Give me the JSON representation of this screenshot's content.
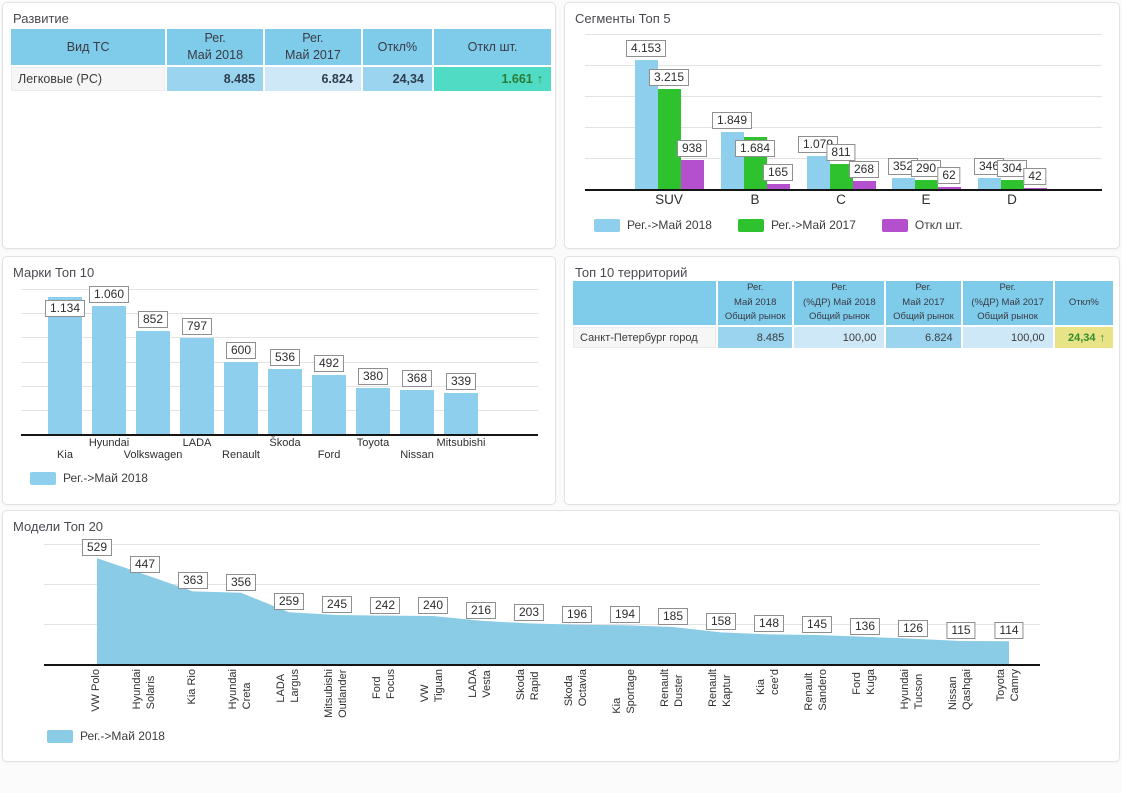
{
  "panels": {
    "razvitie": {
      "title": "Развитие",
      "table": {
        "headers": [
          "Вид ТС",
          "Рег.\nМай 2018",
          "Рег.\nМай 2017",
          "Откл%",
          "Откл шт."
        ],
        "row": {
          "name": "Легковые (PC)",
          "reg_may_2018": "8.485",
          "reg_may_2017": "6.824",
          "otkl_pct": "24,34",
          "otkl_sht": "1.661",
          "trend": "up"
        }
      }
    },
    "segments": {
      "title": "Сегменты Топ 5"
    },
    "brands": {
      "title": "Марки Топ 10"
    },
    "territories": {
      "title": "Топ 10 территорий",
      "table": {
        "headers": [
          "",
          "Рег.\nМай 2018\nОбщий рынок",
          "Рег.\n(%ДР) Май 2018\nОбщий рынок",
          "Рег.\nМай 2017\nОбщий рынок",
          "Рег.\n(%ДР) Май 2017\nОбщий рынок",
          "Откл%"
        ],
        "row": {
          "name": "Санкт-Петербург город",
          "reg_may_2018": "8.485",
          "pct_may_2018": "100,00",
          "reg_may_2017": "6.824",
          "pct_may_2017": "100,00",
          "otkl_pct": "24,34",
          "trend": "up"
        }
      }
    },
    "models": {
      "title": "Модели Топ 20"
    }
  },
  "icons": {
    "trend_up": "↑"
  },
  "colors": {
    "table_header": "#7ecbea",
    "cell_blue": "#9bd4ef",
    "cell_light_blue": "#cfe8f7",
    "cell_teal": "#50dcc4",
    "cell_khaki": "#e9e388",
    "positive_green": "#2e8b2e",
    "series_blue": "#8dcfec",
    "series_green": "#2ec32e",
    "series_purple": "#b450ce"
  },
  "chart_data": [
    {
      "id": "segments",
      "type": "bar",
      "title": "Сегменты Топ 5",
      "categories": [
        "SUV",
        "B",
        "C",
        "E",
        "D"
      ],
      "series": [
        {
          "name": "Рег.->Май 2018",
          "color": "#8dcfec",
          "values": [
            4153,
            1849,
            1079,
            352,
            346
          ]
        },
        {
          "name": "Рег.->Май 2017",
          "color": "#2ec32e",
          "values": [
            3215,
            1684,
            811,
            290,
            304
          ]
        },
        {
          "name": "Откл шт.",
          "color": "#b450ce",
          "values": [
            938,
            165,
            268,
            62,
            42
          ]
        }
      ],
      "xlabel": "",
      "ylabel": "",
      "ylim": [
        0,
        5000
      ],
      "grid_step": 1000,
      "grid": true,
      "value_labels": true,
      "legend_position": "bottom-left"
    },
    {
      "id": "brands",
      "type": "bar",
      "title": "Марки Топ 10",
      "categories": [
        "Kia",
        "Hyundai",
        "Volkswagen",
        "LADA",
        "Renault",
        "Škoda",
        "Ford",
        "Toyota",
        "Nissan",
        "Mitsubishi"
      ],
      "series": [
        {
          "name": "Рег.->Май 2018",
          "color": "#8dcfec",
          "values": [
            1134,
            1060,
            852,
            797,
            600,
            536,
            492,
            380,
            368,
            339
          ]
        }
      ],
      "xlabel": "",
      "ylabel": "",
      "ylim": [
        0,
        1200
      ],
      "grid_step": 200,
      "grid": true,
      "value_labels": true,
      "legend_position": "bottom-left"
    },
    {
      "id": "models",
      "type": "area",
      "title": "Модели Топ 20",
      "categories": [
        "VW Polo",
        "Hyundai\nSolaris",
        "Kia Rio",
        "Hyundai\nCreta",
        "LADA\nLargus",
        "Mitsubishi\nOutlander",
        "Ford\nFocus",
        "VW\nTiguan",
        "LADA\nVesta",
        "Skoda\nRapid",
        "Skoda\nOctavia",
        "Kia\nSportage",
        "Renault\nDuster",
        "Renault\nKaptur",
        "Kia\ncee'd",
        "Renault\nSandero",
        "Ford\nKuga",
        "Hyundai\nTucson",
        "Nissan\nQashqai",
        "Toyota\nCamry"
      ],
      "series": [
        {
          "name": "Рег.->Май 2018",
          "color": "#8acbe6",
          "values": [
            529,
            447,
            363,
            356,
            259,
            245,
            242,
            240,
            216,
            203,
            196,
            194,
            185,
            158,
            148,
            145,
            136,
            126,
            115,
            114
          ]
        }
      ],
      "xlabel": "",
      "ylabel": "",
      "ylim": [
        0,
        600
      ],
      "grid_step": 200,
      "grid": true,
      "value_labels": true,
      "legend_position": "bottom-left"
    }
  ]
}
